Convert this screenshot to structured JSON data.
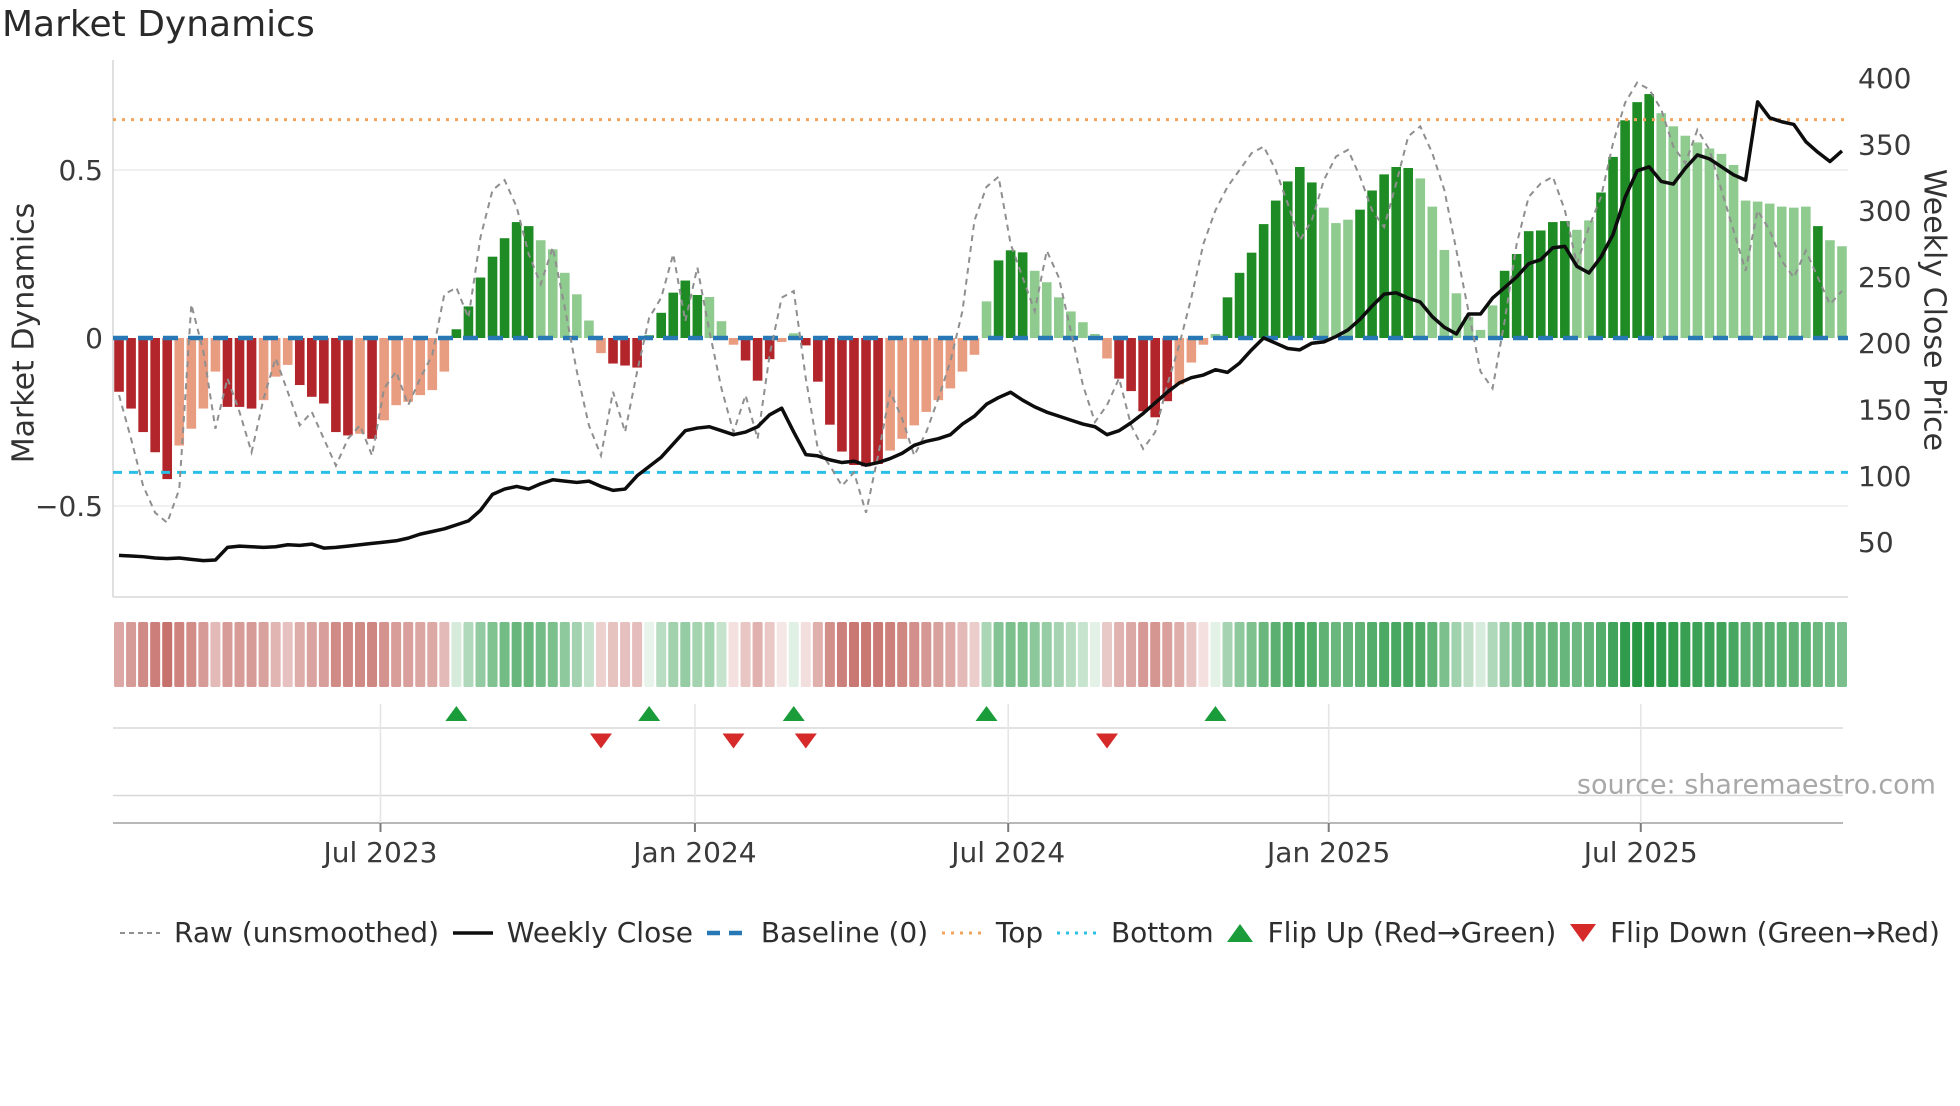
{
  "title": "Market Dynamics",
  "source": "source: sharemaestro.com",
  "axes": {
    "left_label": "Market Dynamics",
    "right_label": "Weekly Close Price",
    "left_ticks": [
      {
        "label": "0.5",
        "value": 0.5
      },
      {
        "label": "0",
        "value": 0
      },
      {
        "label": "−0.5",
        "value": -0.5
      }
    ],
    "right_ticks": [
      400,
      350,
      300,
      250,
      200,
      150,
      100,
      50
    ],
    "x_ticks": [
      {
        "label": "Jul 2023",
        "week": 21.7
      },
      {
        "label": "Jan 2024",
        "week": 47.8
      },
      {
        "label": "Jul 2024",
        "week": 73.8
      },
      {
        "label": "Jan 2025",
        "week": 100.4
      },
      {
        "label": "Jul 2025",
        "week": 126.3
      }
    ]
  },
  "chart_data": {
    "type": "bar",
    "description": "Weekly momentum oscillator bars (left axis) with raw unsmoothed dashed line, weekly close price line (right axis), heatmap strip of bar values, and flip markers where bar sign changes.",
    "weeks": 144,
    "start_date": "2023-02-03",
    "freq": "weekly",
    "ylim_left": [
      -0.8,
      0.83
    ],
    "reference_lines": {
      "baseline": 0,
      "top": 0.65,
      "bottom": -0.4
    },
    "series": [
      {
        "name": "Market Dynamics (smoothed bars)",
        "axis": "left",
        "values": [
          -0.16,
          -0.21,
          -0.28,
          -0.34,
          -0.42,
          -0.32,
          -0.27,
          -0.21,
          -0.1,
          -0.205,
          -0.205,
          -0.21,
          -0.185,
          -0.115,
          -0.08,
          -0.14,
          -0.175,
          -0.195,
          -0.28,
          -0.29,
          -0.285,
          -0.3,
          -0.245,
          -0.2,
          -0.19,
          -0.17,
          -0.155,
          -0.1,
          0.026,
          0.094,
          0.18,
          0.242,
          0.297,
          0.345,
          0.333,
          0.291,
          0.264,
          0.194,
          0.13,
          0.052,
          -0.045,
          -0.076,
          -0.082,
          -0.088,
          0.008,
          0.075,
          0.135,
          0.171,
          0.128,
          0.122,
          0.05,
          -0.02,
          -0.067,
          -0.127,
          -0.063,
          -0.012,
          0.014,
          -0.022,
          -0.13,
          -0.258,
          -0.338,
          -0.378,
          -0.382,
          -0.375,
          -0.335,
          -0.3,
          -0.26,
          -0.22,
          -0.185,
          -0.15,
          -0.1,
          -0.05,
          0.109,
          0.231,
          0.261,
          0.255,
          0.2,
          0.166,
          0.121,
          0.079,
          0.047,
          0.012,
          -0.061,
          -0.121,
          -0.158,
          -0.218,
          -0.236,
          -0.188,
          -0.138,
          -0.073,
          -0.02,
          0.012,
          0.121,
          0.194,
          0.254,
          0.339,
          0.409,
          0.466,
          0.509,
          0.463,
          0.388,
          0.342,
          0.352,
          0.382,
          0.439,
          0.487,
          0.509,
          0.506,
          0.475,
          0.391,
          0.262,
          0.133,
          0.063,
          0.024,
          0.097,
          0.2,
          0.25,
          0.318,
          0.32,
          0.345,
          0.348,
          0.322,
          0.35,
          0.433,
          0.539,
          0.648,
          0.702,
          0.726,
          0.669,
          0.63,
          0.602,
          0.582,
          0.564,
          0.548,
          0.515,
          0.409,
          0.406,
          0.4,
          0.391,
          0.388,
          0.391,
          0.333,
          0.291,
          0.273
        ],
        "shades": "dddddlllldddllldddddldlllllldddddddlllllldddddddd lllddd lld ddddddlllllllllddd lllllllddddd lllldddddddd lllddddd lllllllddddddllddddd lllllllllllll dlll"
      },
      {
        "name": "Raw (unsmoothed)",
        "axis": "left",
        "style": "dashed",
        "values": [
          -0.17,
          -0.3,
          -0.44,
          -0.52,
          -0.55,
          -0.45,
          0.1,
          -0.04,
          -0.27,
          -0.12,
          -0.22,
          -0.34,
          -0.18,
          -0.06,
          -0.16,
          -0.26,
          -0.22,
          -0.3,
          -0.38,
          -0.3,
          -0.26,
          -0.35,
          -0.15,
          -0.1,
          -0.2,
          -0.12,
          -0.05,
          0.13,
          0.15,
          0.06,
          0.3,
          0.44,
          0.47,
          0.39,
          0.25,
          0.16,
          0.27,
          0.09,
          -0.1,
          -0.26,
          -0.35,
          -0.16,
          -0.28,
          -0.1,
          0.06,
          0.12,
          0.25,
          0.05,
          0.21,
          0.02,
          -0.15,
          -0.28,
          -0.17,
          -0.3,
          -0.05,
          0.12,
          0.14,
          -0.12,
          -0.33,
          -0.38,
          -0.44,
          -0.4,
          -0.52,
          -0.35,
          -0.16,
          -0.24,
          -0.35,
          -0.28,
          -0.18,
          -0.07,
          0.08,
          0.35,
          0.45,
          0.48,
          0.28,
          0.18,
          0.08,
          0.26,
          0.18,
          0.02,
          -0.14,
          -0.25,
          -0.2,
          -0.12,
          -0.26,
          -0.33,
          -0.28,
          -0.14,
          -0.02,
          0.12,
          0.28,
          0.38,
          0.45,
          0.5,
          0.55,
          0.57,
          0.5,
          0.4,
          0.29,
          0.35,
          0.47,
          0.54,
          0.56,
          0.48,
          0.38,
          0.33,
          0.46,
          0.6,
          0.63,
          0.55,
          0.44,
          0.26,
          0.08,
          -0.1,
          -0.15,
          0.05,
          0.28,
          0.42,
          0.46,
          0.48,
          0.38,
          0.22,
          0.33,
          0.42,
          0.58,
          0.7,
          0.76,
          0.74,
          0.68,
          0.57,
          0.52,
          0.62,
          0.56,
          0.44,
          0.32,
          0.2,
          0.38,
          0.32,
          0.23,
          0.18,
          0.26,
          0.18,
          0.1,
          0.14
        ]
      },
      {
        "name": "Weekly Close",
        "axis": "right",
        "values": [
          40,
          39.5,
          39,
          38,
          37.5,
          38,
          37,
          36,
          36.5,
          46,
          47,
          46.5,
          46,
          46.5,
          48,
          47.5,
          48.5,
          45.5,
          46,
          47,
          48,
          49,
          50,
          51,
          53,
          56,
          58,
          60,
          63,
          66,
          74,
          86,
          90,
          92,
          90,
          94,
          97,
          96,
          95,
          96,
          92,
          89,
          90,
          100,
          107,
          114,
          124,
          134,
          136,
          137,
          134,
          131,
          133,
          137,
          146,
          151,
          133,
          116,
          115,
          112,
          110,
          111,
          108,
          110,
          113,
          117,
          123,
          126,
          128,
          131,
          139,
          145,
          154,
          159,
          163,
          157,
          152,
          148,
          145,
          142,
          139,
          137,
          131,
          134,
          140,
          147,
          155,
          163,
          170,
          174,
          176,
          180,
          178,
          185,
          195,
          204,
          200,
          196,
          195,
          200,
          201,
          205,
          210,
          218,
          228,
          237,
          238,
          234,
          231,
          220,
          212,
          207,
          222,
          222,
          234,
          242,
          250,
          260,
          263,
          272,
          273,
          258,
          253,
          265,
          282,
          310,
          330,
          333,
          322,
          320,
          332,
          342,
          339,
          333,
          327,
          323,
          382,
          370,
          367,
          365,
          352,
          344,
          337,
          345
        ]
      }
    ],
    "flip_up_weeks": [
      28,
      44,
      56,
      72,
      91
    ],
    "flip_down_weeks": [
      40,
      51,
      57,
      82
    ],
    "heatmap": "cells colored from the smoothed bar values (red negative, green positive)"
  },
  "legend": {
    "items": [
      {
        "label": "Raw (unsmoothed)",
        "swatch": "dash-gray"
      },
      {
        "label": "Weekly Close",
        "swatch": "line-black"
      },
      {
        "label": "Baseline (0)",
        "swatch": "dash-blue"
      },
      {
        "label": "Top",
        "swatch": "dot-orange"
      },
      {
        "label": "Bottom",
        "swatch": "dot-cyan"
      },
      {
        "label": "Flip Up (Red→Green)",
        "swatch": "triangle-up-green"
      },
      {
        "label": "Flip Down (Green→Red)",
        "swatch": "triangle-down-red"
      }
    ]
  },
  "colors": {
    "bar_neg_dark": "#b2252a",
    "bar_neg_light": "#e89c80",
    "bar_pos_dark": "#1f8b24",
    "bar_pos_light": "#8fca8f",
    "raw_line": "#8f8f8f",
    "close_line": "#0d0d0d",
    "baseline": "#2778b5",
    "top_line": "#f2a45f",
    "bottom_line": "#29bfe6",
    "flip_up": "#1a9c3a",
    "flip_down": "#d62a2a",
    "heat_pos": "#259642",
    "heat_neg": "#b5453e",
    "grid": "#ececec",
    "spine": "#d8d8d8",
    "tick_text": "#3a3a3a"
  }
}
